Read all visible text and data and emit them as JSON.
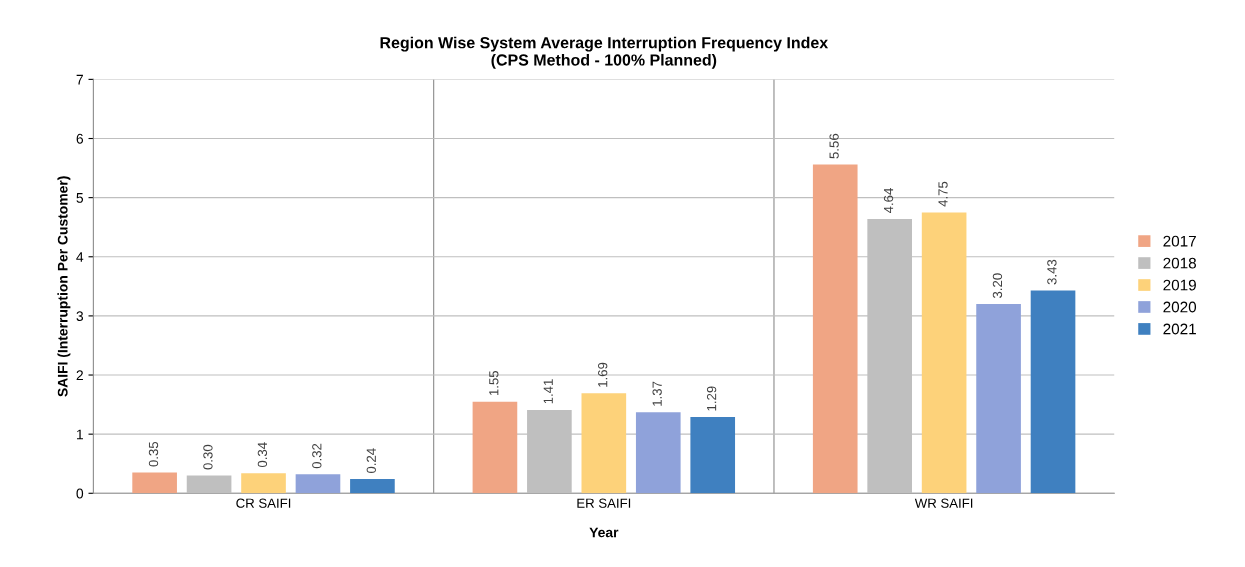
{
  "chart_data": {
    "type": "bar",
    "title": "Region Wise System Average Interruption Frequency Index\n(CPS Method - 100% Planned)",
    "xlabel": "Year",
    "ylabel": "SAIFI (Interruption Per Customer)",
    "categories": [
      "CR SAIFI",
      "ER SAIFI",
      "WR SAIFI"
    ],
    "series": [
      {
        "name": "2017",
        "color": "#f0a584",
        "values": [
          0.35,
          1.55,
          5.56
        ]
      },
      {
        "name": "2018",
        "color": "#bfbfbf",
        "values": [
          0.3,
          1.41,
          4.64
        ]
      },
      {
        "name": "2019",
        "color": "#fdd27a",
        "values": [
          0.34,
          1.69,
          4.75
        ]
      },
      {
        "name": "2020",
        "color": "#8fa2da",
        "values": [
          0.32,
          1.37,
          3.2
        ]
      },
      {
        "name": "2021",
        "color": "#3f80c0",
        "values": [
          0.24,
          1.29,
          3.43
        ]
      }
    ],
    "ylim": [
      0,
      7
    ],
    "yticks": [
      0,
      1,
      2,
      3,
      4,
      5,
      6,
      7
    ],
    "value_labels": [
      [
        "0.35",
        "1.55",
        "5.56"
      ],
      [
        "0.30",
        "1.41",
        "4.64"
      ],
      [
        "0.34",
        "1.69",
        "4.75"
      ],
      [
        "0.32",
        "1.37",
        "3.20"
      ],
      [
        "0.24",
        "1.29",
        "3.43"
      ]
    ],
    "grid": true,
    "legend": "right"
  }
}
